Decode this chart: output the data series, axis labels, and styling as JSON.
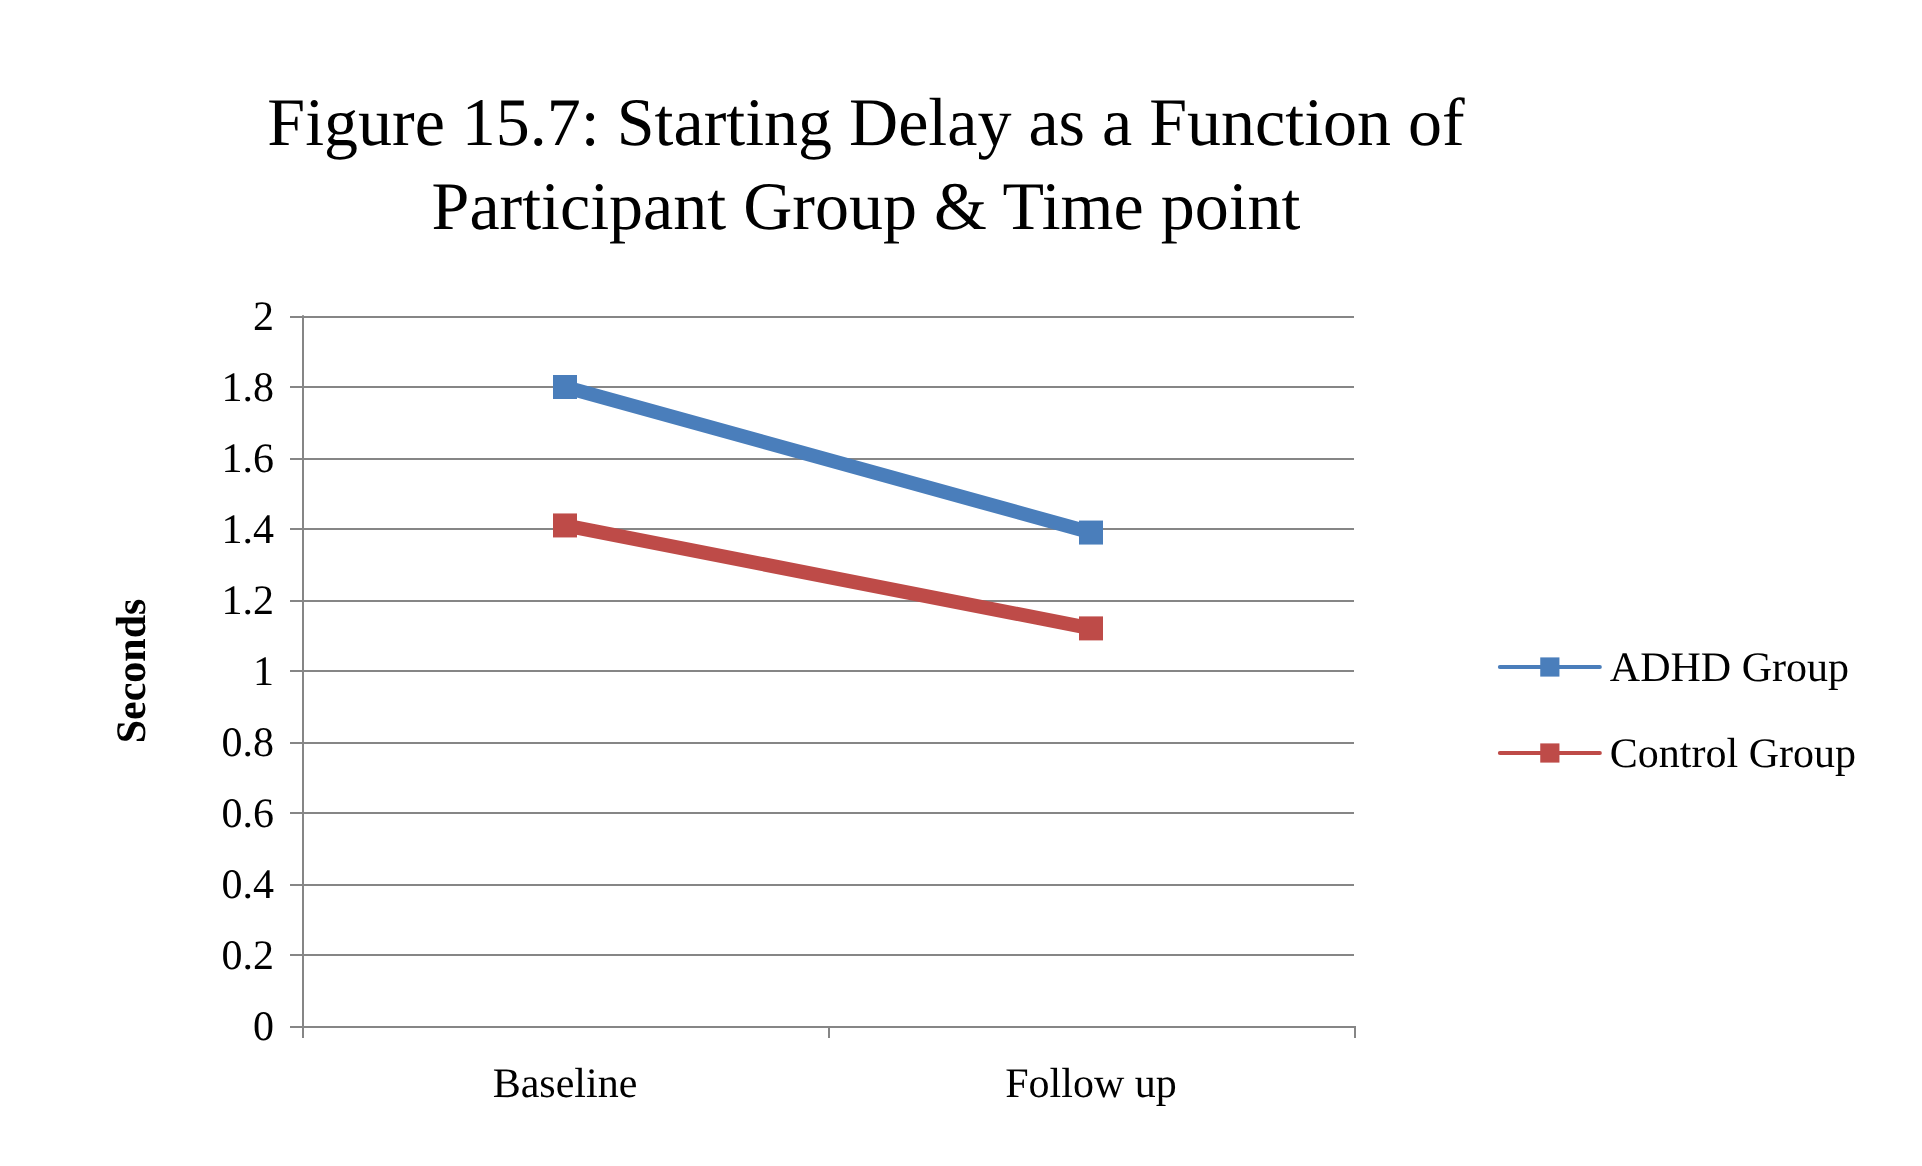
{
  "chart_data": {
    "type": "line",
    "title": "Figure 15.7: Starting Delay as a Function of\nParticipant Group & Time point",
    "ylabel": "Seconds",
    "categories": [
      "Baseline",
      "Follow up"
    ],
    "series": [
      {
        "name": "ADHD Group",
        "color": "#4a7ebb",
        "values": [
          1.8,
          1.39
        ]
      },
      {
        "name": "Control Group",
        "color": "#be4b48",
        "values": [
          1.41,
          1.12
        ]
      }
    ],
    "ylim": [
      0,
      2
    ],
    "yticks": [
      0,
      0.2,
      0.4,
      0.6,
      0.8,
      1,
      1.2,
      1.4,
      1.6,
      1.8,
      2
    ],
    "grid": "y",
    "legend": "right",
    "marker": "square",
    "line_style": "solid"
  }
}
